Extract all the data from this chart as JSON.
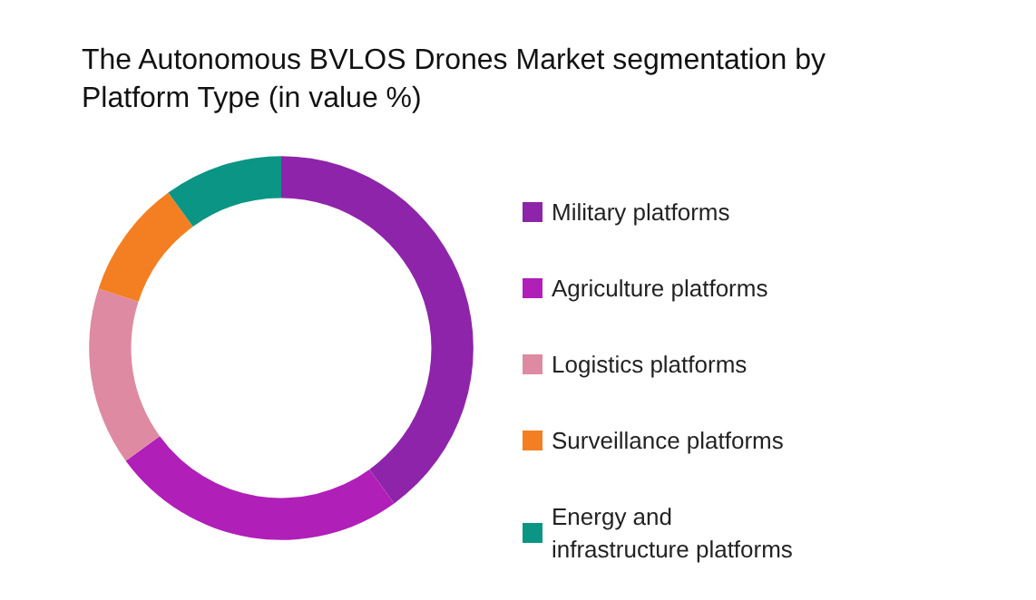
{
  "chart_data": {
    "type": "donut",
    "title": "The Autonomous BVLOS Drones Market segmentation by Platform Type (in value %)",
    "categories": [
      "Military platforms",
      "Agriculture platforms",
      "Logistics platforms",
      "Surveillance platforms",
      "Energy and infrastructure platforms"
    ],
    "values": [
      40,
      25,
      15,
      10,
      10
    ],
    "colors": [
      "#8e24aa",
      "#b01fb8",
      "#de8aa2",
      "#f37f22",
      "#0a9585"
    ],
    "legend": "right"
  }
}
